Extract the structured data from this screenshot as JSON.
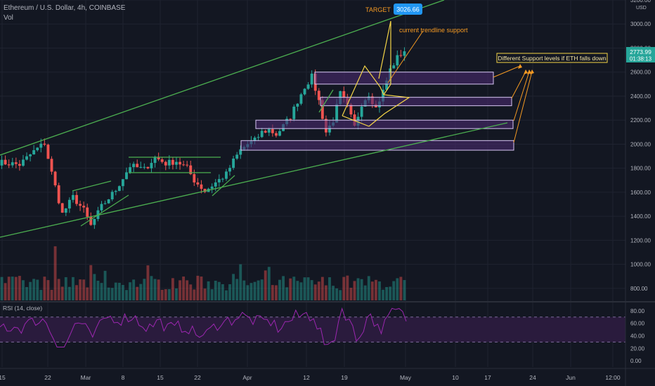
{
  "header": {
    "title": "Ethereum / U.S. Dollar, 4h, COINBASE",
    "volume_label": "Vol",
    "currency": "USD"
  },
  "colors": {
    "background": "#131722",
    "grid": "#1f2330",
    "text": "#b2b5be",
    "candle_up": "#26a69a",
    "candle_down": "#ef5350",
    "trendline": "#4caf50",
    "zone_fill": "#4a2a6e",
    "zone_stroke": "#d9c7f5",
    "triangle": "#f5d547",
    "annotation": "#f59a23",
    "target_badge": "#2196f3",
    "price_badge": "#26a69a",
    "rsi_line": "#9c27b0",
    "rsi_band": "#2a1b3d"
  },
  "chart_data": {
    "type": "candlestick",
    "symbol": "ETH/USD",
    "timeframe": "4h",
    "exchange": "COINBASE",
    "ylim": [
      700,
      3200
    ],
    "y_ticks": [
      "3200.00",
      "3000.00",
      "2800.00",
      "2600.00",
      "2400.00",
      "2200.00",
      "2000.00",
      "1800.00",
      "1600.00",
      "1400.00",
      "1200.00",
      "1000.00",
      "800.00"
    ],
    "x_ticks": [
      "15",
      "22",
      "Mar",
      "8",
      "15",
      "22",
      "Apr",
      "12",
      "19",
      "May",
      "10",
      "17",
      "24",
      "Jun",
      "12:00"
    ],
    "path": [
      [
        0,
        1850
      ],
      [
        6,
        1830
      ],
      [
        10,
        1940
      ],
      [
        13,
        2010
      ],
      [
        15,
        1760
      ],
      [
        18,
        1420
      ],
      [
        21,
        1560
      ],
      [
        24,
        1450
      ],
      [
        26,
        1320
      ],
      [
        29,
        1480
      ],
      [
        33,
        1620
      ],
      [
        35,
        1720
      ],
      [
        37,
        1820
      ],
      [
        41,
        1790
      ],
      [
        44,
        1890
      ],
      [
        47,
        1840
      ],
      [
        50,
        1860
      ],
      [
        53,
        1800
      ],
      [
        55,
        1700
      ],
      [
        58,
        1610
      ],
      [
        61,
        1680
      ],
      [
        64,
        1750
      ],
      [
        66,
        1860
      ],
      [
        68,
        1950
      ],
      [
        70,
        2000
      ],
      [
        72,
        2030
      ],
      [
        74,
        2100
      ],
      [
        76,
        2120
      ],
      [
        78,
        2080
      ],
      [
        80,
        2150
      ],
      [
        82,
        2230
      ],
      [
        84,
        2360
      ],
      [
        86,
        2480
      ],
      [
        88,
        2560
      ],
      [
        90,
        2360
      ],
      [
        92,
        2100
      ],
      [
        94,
        2200
      ],
      [
        96,
        2420
      ],
      [
        98,
        2310
      ],
      [
        100,
        2140
      ],
      [
        102,
        2340
      ],
      [
        104,
        2420
      ],
      [
        106,
        2300
      ],
      [
        108,
        2440
      ],
      [
        110,
        2620
      ],
      [
        112,
        2720
      ],
      [
        114,
        2780
      ]
    ],
    "last_price": "2773.99",
    "countdown": "01:38:13",
    "target": {
      "label": "TARGET",
      "value": "3026.66"
    },
    "annotations": {
      "trendline_support": "current trendline support",
      "support_levels": "Different Support levels if ETH falls down"
    },
    "support_zones": [
      {
        "low": 2500,
        "high": 2600
      },
      {
        "low": 2320,
        "high": 2390
      },
      {
        "low": 2130,
        "high": 2200
      },
      {
        "low": 1950,
        "high": 2030
      }
    ],
    "rsi": {
      "label": "RSI (14, close)",
      "ylim": [
        -10,
        90
      ],
      "upper_band": 70,
      "lower_band": 30,
      "ticks": [
        "80.00",
        "60.00",
        "40.00",
        "20.00",
        "0.00"
      ]
    },
    "volume_ylim": [
      0,
      700
    ]
  }
}
